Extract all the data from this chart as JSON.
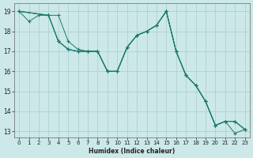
{
  "xlabel": "Humidex (Indice chaleur)",
  "xlim": [
    -0.5,
    23.5
  ],
  "ylim": [
    12.7,
    19.4
  ],
  "xticks": [
    0,
    1,
    2,
    3,
    4,
    5,
    6,
    7,
    8,
    9,
    10,
    11,
    12,
    13,
    14,
    15,
    16,
    17,
    18,
    19,
    20,
    21,
    22,
    23
  ],
  "yticks": [
    13,
    14,
    15,
    16,
    17,
    18,
    19
  ],
  "bg_color": "#cce8e8",
  "line_color": "#1a7a6e",
  "grid_color": "#aacccc",
  "series": [
    {
      "x": [
        0,
        1,
        2,
        3,
        4,
        5,
        6,
        7,
        8,
        9,
        10,
        11,
        12,
        13,
        14,
        15,
        16,
        17,
        18,
        19,
        20,
        21,
        22,
        23
      ],
      "y": [
        19.0,
        18.5,
        18.8,
        18.8,
        17.5,
        17.1,
        17.0,
        17.0,
        17.0,
        16.0,
        16.0,
        17.2,
        17.8,
        18.0,
        18.3,
        19.0,
        17.0,
        15.8,
        15.3,
        14.5,
        13.3,
        13.5,
        12.9,
        13.1
      ]
    },
    {
      "x": [
        0,
        3,
        4,
        5,
        6,
        7,
        8,
        9,
        10,
        11,
        12,
        13,
        14,
        15,
        16,
        17,
        18,
        19,
        20,
        21,
        22,
        23
      ],
      "y": [
        19.0,
        18.8,
        18.8,
        17.5,
        17.1,
        17.0,
        17.0,
        16.0,
        16.0,
        17.2,
        17.8,
        18.0,
        18.3,
        19.0,
        17.0,
        15.8,
        15.3,
        14.5,
        13.3,
        13.5,
        13.5,
        13.1
      ]
    },
    {
      "x": [
        0,
        3,
        4,
        5,
        6,
        7,
        8,
        9,
        10,
        11,
        12,
        13,
        14,
        15,
        16,
        17,
        18,
        19,
        20,
        21,
        22,
        23
      ],
      "y": [
        19.0,
        18.8,
        17.5,
        17.1,
        17.0,
        17.0,
        17.0,
        16.0,
        16.0,
        17.2,
        17.8,
        18.0,
        18.3,
        19.0,
        17.0,
        15.8,
        15.3,
        14.5,
        13.3,
        13.5,
        13.5,
        13.1
      ]
    },
    {
      "x": [
        0,
        3,
        4,
        5,
        6,
        7,
        8,
        9,
        10,
        11,
        12,
        13,
        14,
        15,
        16,
        17,
        18,
        19,
        20,
        21,
        22,
        23
      ],
      "y": [
        19.0,
        18.8,
        17.5,
        17.1,
        17.0,
        17.0,
        17.0,
        16.0,
        16.0,
        17.2,
        17.8,
        18.0,
        18.3,
        19.0,
        17.0,
        15.8,
        15.3,
        14.5,
        13.3,
        13.5,
        13.5,
        13.1
      ]
    }
  ]
}
